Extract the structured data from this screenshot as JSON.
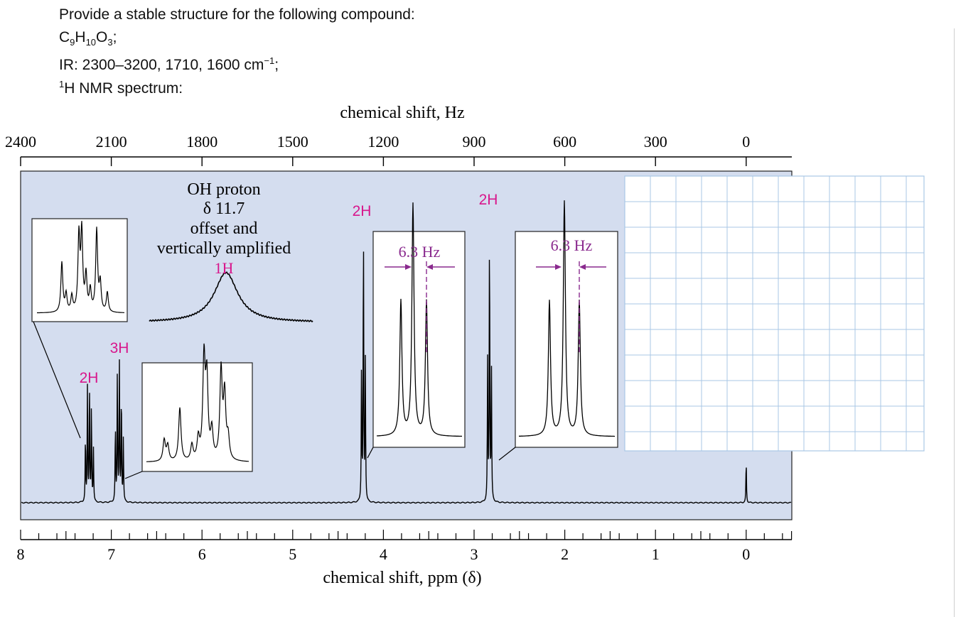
{
  "question": {
    "line1": "Provide a stable structure for the following compound:",
    "formula": {
      "c": "C",
      "c_n": "9",
      "h": "H",
      "h_n": "10",
      "o": "O",
      "o_n": "3",
      "end": ";"
    },
    "ir": {
      "prefix": "IR: 2300–3200, 1710, 1600 cm",
      "sup": "−1",
      "end": ";"
    },
    "nmr": {
      "sup": "1",
      "text": "H NMR spectrum:"
    }
  },
  "chart_data": {
    "type": "line",
    "title": "",
    "x_top_label": "chemical shift, Hz",
    "x_top_ticks": [
      "2400",
      "2100",
      "1800",
      "1500",
      "1200",
      "900",
      "600",
      "300",
      "0"
    ],
    "xlabel": "chemical shift, ppm (δ)",
    "x_bottom_ticks": [
      "8",
      "7",
      "6",
      "5",
      "4",
      "3",
      "2",
      "1",
      "0"
    ],
    "xlim_ppm": [
      8,
      -0.5
    ],
    "spectrometer_mhz": 300,
    "peaks": [
      {
        "ppm": 7.25,
        "integration": "2H",
        "multiplicity": "aromatic multiplet",
        "rel_height": 0.43
      },
      {
        "ppm": 6.92,
        "integration": "3H",
        "multiplicity": "aromatic multiplet",
        "rel_height": 0.5
      },
      {
        "ppm": 4.22,
        "integration": "2H",
        "multiplicity": "triplet",
        "rel_height": 1.0
      },
      {
        "ppm": 2.83,
        "integration": "2H",
        "multiplicity": "triplet",
        "rel_height": 1.0
      },
      {
        "ppm": 0.0,
        "integration": "",
        "multiplicity": "TMS reference",
        "rel_height": 0.15
      }
    ],
    "oh_peak": {
      "ppm": 11.7,
      "integration": "1H"
    },
    "annotations": {
      "oh_lines": [
        "OH proton",
        "δ 11.7",
        "offset and",
        "vertically amplified"
      ],
      "oh_integration": "1H",
      "int_2h_a": "2H",
      "int_3h": "3H",
      "int_2h_b": "2H",
      "int_2h_c": "2H",
      "coupling_1": "6.3 Hz",
      "coupling_2": "6.3 Hz"
    },
    "colors": {
      "panel": "#d4ddef",
      "integration": "#d8168c",
      "coupling": "#8a2a8e",
      "grid": "#a9c7e6",
      "trace": "#000000"
    }
  }
}
